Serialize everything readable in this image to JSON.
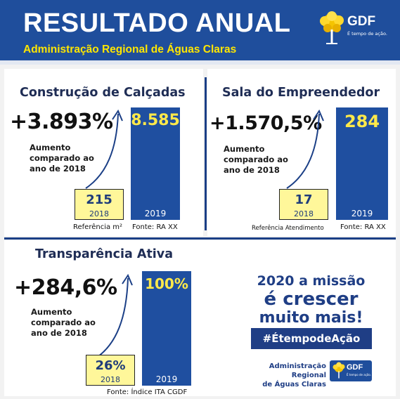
{
  "header": {
    "title": "RESULTADO ANUAL",
    "subtitle": "Administração Regional de Águas Claras",
    "logo_text": "GDF",
    "logo_tagline": "É tempo de ação."
  },
  "colors": {
    "header_blue": "#1f4e9c",
    "accent_yellow": "#ffe600",
    "bar_blue": "#1f4fa0",
    "bar_yellow": "#fff79a"
  },
  "sections": {
    "calcadas": {
      "title": "Construção de Calçadas",
      "percent": "+3.893%",
      "description": [
        "Aumento",
        "comparado ao",
        "ano de 2018"
      ],
      "bar_2019_value": "8.585",
      "bar_2019_year": "2019",
      "bar_2018_value": "215",
      "bar_2018_year": "2018",
      "reference": "Referência m²",
      "source": "Fonte: RA XX"
    },
    "empreendedor": {
      "title": "Sala do Empreendedor",
      "percent": "+1.570,5%",
      "description": [
        "Aumento",
        "comparado ao",
        "ano de 2018"
      ],
      "bar_2019_value": "284",
      "bar_2019_year": "2019",
      "bar_2018_value": "17",
      "bar_2018_year": "2018",
      "reference": "Referência Atendimento",
      "source": "Fonte: RA XX"
    },
    "transparencia": {
      "title": "Transparência Ativa",
      "percent": "+284,6%",
      "description": [
        "Aumento",
        "comparado ao",
        "ano de 2018"
      ],
      "bar_2019_value": "100%",
      "bar_2019_year": "2019",
      "bar_2018_value": "26%",
      "bar_2018_year": "2018",
      "source": "Fonte: Índice ITA CGDF"
    }
  },
  "mission": {
    "line1": "2020 a missão",
    "line2": "é crescer",
    "line3": "muito mais!",
    "hashtag": "#ÉtempodeAção"
  },
  "footer": {
    "admin_line1": "Administração Regional",
    "admin_line2": "de Águas Claras",
    "logo_text": "GDF",
    "logo_tagline": "É tempo de ação."
  }
}
